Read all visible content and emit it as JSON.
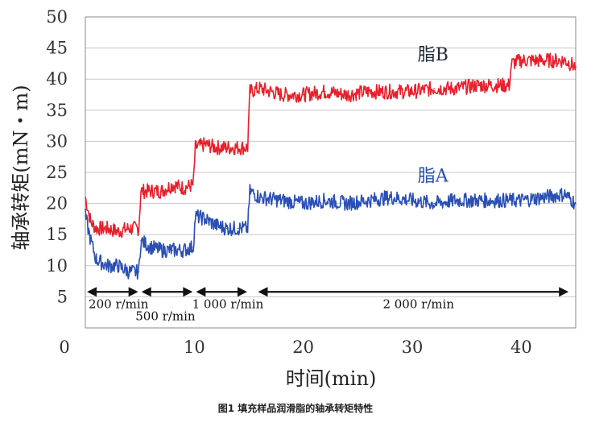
{
  "caption": "图1 填充样品润滑脂的轴承转矩特性",
  "chart_data": {
    "type": "line",
    "title": "",
    "xlabel": "时间(min)",
    "ylabel": "轴承转矩(mN・m)",
    "xlim": [
      0,
      45
    ],
    "ylim": [
      0,
      50
    ],
    "xticks": [
      0,
      10,
      20,
      30,
      40
    ],
    "yticks": [
      5,
      10,
      15,
      20,
      25,
      30,
      35,
      40,
      45,
      50
    ],
    "grid": "horizontal",
    "series": [
      {
        "name": "脂B",
        "color": "#e8202a",
        "x": [
          0,
          0.5,
          1,
          2,
          3,
          4,
          4.9,
          5.1,
          6,
          7,
          8,
          9,
          9.9,
          10.1,
          11,
          12,
          13,
          14,
          14.9,
          15.1,
          16,
          18,
          20,
          22,
          24,
          26,
          28,
          30,
          32,
          34,
          36,
          38,
          38.9,
          39.1,
          40,
          42,
          44,
          45
        ],
        "y": [
          21,
          17,
          16,
          16,
          15.5,
          16,
          16,
          22,
          22,
          22,
          23,
          22.5,
          23,
          29,
          29.5,
          29,
          29,
          29,
          29,
          38,
          38.5,
          37.5,
          37.5,
          38,
          37.5,
          38,
          38,
          38,
          38.5,
          38.5,
          39,
          39,
          39,
          42.5,
          43,
          43,
          43,
          42
        ]
      },
      {
        "name": "脂A",
        "color": "#2a4fb5",
        "x": [
          0,
          0.5,
          1,
          2,
          3,
          4,
          4.9,
          5.1,
          6,
          7,
          8,
          9,
          9.9,
          10.1,
          11,
          12,
          13,
          14,
          14.9,
          15.1,
          16,
          18,
          20,
          22,
          24,
          26,
          28,
          30,
          32,
          34,
          36,
          38,
          40,
          42,
          44,
          45
        ],
        "y": [
          18,
          14,
          11,
          10,
          10,
          9,
          9,
          14,
          13,
          12.5,
          12.5,
          12.5,
          13,
          18,
          17.5,
          16.5,
          16,
          16,
          16,
          22,
          21,
          20.5,
          20,
          20.5,
          20,
          20.5,
          21,
          20.5,
          20,
          20.5,
          20.5,
          20.5,
          20.5,
          21,
          21.5,
          20
        ]
      }
    ],
    "series_labels": [
      {
        "text": "脂B",
        "x": 30.5,
        "y": 43
      },
      {
        "text": "脂A",
        "x": 30.5,
        "y": 23.5
      }
    ],
    "speed_annotations": [
      {
        "label": "200 r/min",
        "x_start": 0,
        "x_end": 5,
        "label_x": 0.3,
        "label_y": 3.2
      },
      {
        "label": "500 r/min",
        "x_start": 5,
        "x_end": 10,
        "label_x": 4.6,
        "label_y": 1.2
      },
      {
        "label": "1 000 r/min",
        "x_start": 10,
        "x_end": 15,
        "label_x": 9.8,
        "label_y": 3.2
      },
      {
        "label": "2 000 r/min",
        "x_start": 15.7,
        "x_end": 44.5,
        "label_x": 27.3,
        "label_y": 3.2
      }
    ],
    "arrow_y": 5.8
  }
}
